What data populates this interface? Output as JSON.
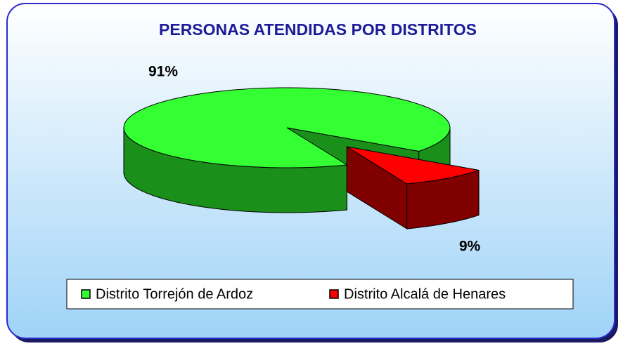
{
  "chart_data": {
    "type": "pie3d",
    "title": "PERSONAS ATENDIDAS POR DISTRITOS",
    "categories": [
      "Distrito Torrejón de Ardoz",
      "Distrito Alcalá de Henares"
    ],
    "values": [
      91,
      9
    ],
    "value_labels": [
      "91%",
      "9%"
    ],
    "colors": [
      "#33ff33",
      "#ff0000"
    ],
    "legend": "bottom"
  }
}
